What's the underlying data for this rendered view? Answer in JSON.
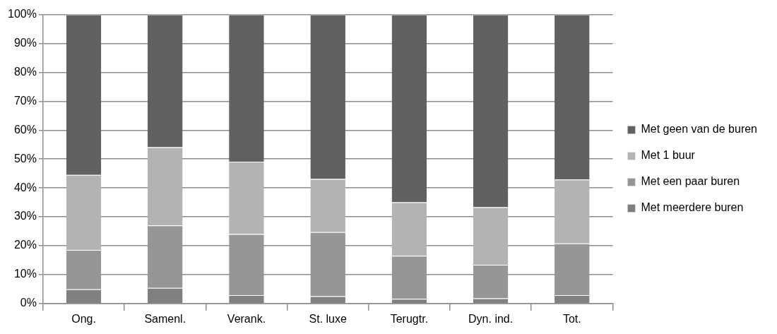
{
  "chart_data": {
    "type": "bar",
    "stacked": true,
    "categories": [
      "Ong.",
      "Samenl.",
      "Verank.",
      "St. luxe",
      "Terugtr.",
      "Dyn. ind.",
      "Tot."
    ],
    "series": [
      {
        "name": "Met meerdere buren",
        "color": "#808080",
        "values": [
          4.9,
          5.4,
          2.9,
          2.5,
          1.6,
          1.8,
          2.9
        ]
      },
      {
        "name": "Met een paar buren",
        "color": "#969696",
        "values": [
          13.6,
          21.6,
          21.1,
          22.2,
          14.9,
          11.6,
          17.9
        ]
      },
      {
        "name": "Met 1 buur",
        "color": "#b3b3b3",
        "values": [
          26.0,
          27.1,
          25.1,
          18.4,
          18.5,
          19.9,
          22.1
        ]
      },
      {
        "name": "Met geen van de buren",
        "color": "#616161",
        "values": [
          55.5,
          45.9,
          50.9,
          56.9,
          65.0,
          66.7,
          57.1
        ]
      }
    ],
    "ylim": [
      0,
      100
    ],
    "yticks": [
      {
        "value": 0,
        "label": "0%"
      },
      {
        "value": 10,
        "label": "10%"
      },
      {
        "value": 20,
        "label": "20%"
      },
      {
        "value": 30,
        "label": "30%"
      },
      {
        "value": 40,
        "label": "40%"
      },
      {
        "value": 50,
        "label": "50%"
      },
      {
        "value": 60,
        "label": "60%"
      },
      {
        "value": 70,
        "label": "70%"
      },
      {
        "value": 80,
        "label": "80%"
      },
      {
        "value": 90,
        "label": "90%"
      },
      {
        "value": 100,
        "label": "100%"
      }
    ],
    "grid": "y",
    "legend": "right"
  }
}
